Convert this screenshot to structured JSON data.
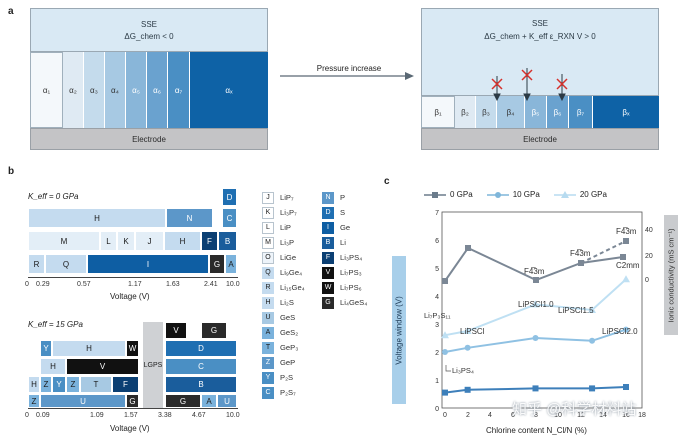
{
  "panel_a": {
    "label": "a",
    "left": {
      "sse_title": "SSE",
      "sse_condition": "ΔG_chem < 0",
      "phases": [
        "α₁",
        "α₂",
        "α₃",
        "α₄",
        "α₅",
        "α₆",
        "α₇",
        "αₓ"
      ],
      "electrode": "Electrode"
    },
    "arrow_label": "Pressure increase",
    "right": {
      "sse_title": "SSE",
      "sse_condition": "ΔG_chem + K_eff ε_RXN V > 0",
      "phases": [
        "β₁",
        "β₂",
        "β₃",
        "β₄",
        "β₅",
        "β₆",
        "β₇",
        "βₓ"
      ],
      "electrode": "Electrode"
    }
  },
  "panel_b": {
    "label": "b",
    "chart1": {
      "title": "K_eff = 0 GPa",
      "xlabel": "Voltage (V)",
      "ticks": [
        "0",
        "0.29",
        "0.57",
        "1.17",
        "1.63",
        "2.41",
        "10.0"
      ]
    },
    "chart2": {
      "title": "K_eff = 15 GPa",
      "xlabel": "Voltage (V)",
      "ticks": [
        "0",
        "0.09",
        "1.09",
        "1.57",
        "3.38",
        "4.67",
        "10.0"
      ],
      "lgps": "LGPS"
    },
    "legend_col1": [
      {
        "key": "J",
        "name": "LiP₇"
      },
      {
        "key": "K",
        "name": "Li₃P₇"
      },
      {
        "key": "L",
        "name": "LiP"
      },
      {
        "key": "M",
        "name": "Li₃P"
      },
      {
        "key": "O",
        "name": "LiGe"
      },
      {
        "key": "Q",
        "name": "Li₉Ge₄"
      },
      {
        "key": "R",
        "name": "Li₁₅Ge₄"
      },
      {
        "key": "H",
        "name": "Li₂S"
      },
      {
        "key": "U",
        "name": "GeS"
      },
      {
        "key": "A",
        "name": "GeS₂"
      },
      {
        "key": "T",
        "name": "GeP₃"
      },
      {
        "key": "Z",
        "name": "GeP"
      },
      {
        "key": "Y",
        "name": "P₂S"
      },
      {
        "key": "C",
        "name": "P₂S₇"
      }
    ],
    "legend_col2": [
      {
        "key": "N",
        "name": "P"
      },
      {
        "key": "D",
        "name": "S"
      },
      {
        "key": "I",
        "name": "Ge"
      },
      {
        "key": "B",
        "name": "Li"
      },
      {
        "key": "F",
        "name": "Li₃PS₄"
      },
      {
        "key": "V",
        "name": "Li₇PS₃"
      },
      {
        "key": "W",
        "name": "Li₇PS₆"
      },
      {
        "key": "G",
        "name": "Li₄GeS₄"
      }
    ]
  },
  "panel_c": {
    "label": "c",
    "legend": [
      "0 GPa",
      "10 GPa",
      "20 GPa"
    ],
    "ylabel_left": "Voltage window (V)",
    "ylabel_right": "Ionic conductivity (mS cm⁻¹)",
    "xlabel": "Chlorine content N_Cl/N (%)",
    "xticks": [
      "0",
      "2",
      "4",
      "6",
      "8",
      "10",
      "12",
      "14",
      "16",
      "18"
    ],
    "yticks_left": [
      "0",
      "1",
      "2",
      "3",
      "4",
      "5",
      "6",
      "7"
    ],
    "yticks_right": [
      "0",
      "20",
      "40"
    ],
    "annotations": [
      "F4̅3m",
      "F4̅3m",
      "F4̅3m",
      "C2mm",
      "LiPSCl",
      "LiPSCl1.0",
      "LiPSCl1.5",
      "LiPSCl2.0",
      "Li₇P₃S₁₁",
      "Li₃PS₄"
    ],
    "watermark": "知乎 @科学材料站"
  },
  "chart_data": {
    "type": "line",
    "xlabel": "Chlorine content N_Cl/N (%)",
    "ylabel": "Voltage window (V)",
    "x": [
      0,
      2,
      8,
      13,
      16
    ],
    "series": [
      {
        "name": "0 GPa",
        "values": [
          0.55,
          0.65,
          0.7,
          0.7,
          0.75
        ]
      },
      {
        "name": "10 GPa",
        "values": [
          2.0,
          2.15,
          2.5,
          2.4,
          2.8
        ]
      },
      {
        "name": "20 GPa",
        "values": [
          2.6,
          2.75,
          3.7,
          3.5,
          4.6
        ]
      }
    ],
    "ylim": [
      0,
      7
    ],
    "xlim": [
      0,
      18
    ]
  }
}
